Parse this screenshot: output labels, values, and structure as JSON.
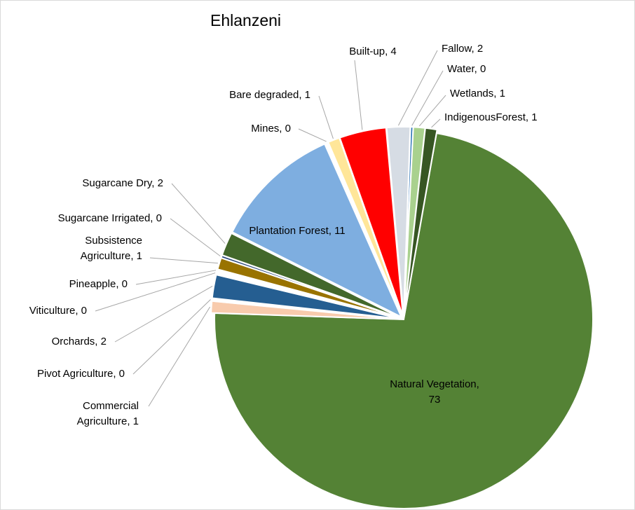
{
  "chart_data": {
    "type": "pie",
    "title": "Ehlanzeni",
    "label_format": "{name}, {value}",
    "slices": [
      {
        "name": "Natural Vegetation",
        "value": 73,
        "color": "#548235"
      },
      {
        "name": "Commercial Agriculture",
        "value": 1,
        "color": "#f8cbad"
      },
      {
        "name": "Pivot  Agriculture",
        "value": 0,
        "color": "#ffffff"
      },
      {
        "name": "Orchards",
        "value": 2,
        "color": "#255e91"
      },
      {
        "name": "Viticulture",
        "value": 0,
        "color": "#ffffff"
      },
      {
        "name": "Pineapple",
        "value": 0,
        "color": "#ffffff"
      },
      {
        "name": "Subsistence Agriculture",
        "value": 1,
        "color": "#997300"
      },
      {
        "name": "Sugarcane Irrigated",
        "value": 0,
        "color": "#264478"
      },
      {
        "name": "Sugarcane Dry",
        "value": 2,
        "color": "#43682b"
      },
      {
        "name": "Plantation Forest",
        "value": 11,
        "color": "#7eaee0"
      },
      {
        "name": "Mines",
        "value": 0,
        "color": "#ffffff"
      },
      {
        "name": "Bare degraded",
        "value": 1,
        "color": "#ffe699"
      },
      {
        "name": "Built-up",
        "value": 4,
        "color": "#ff0000"
      },
      {
        "name": "Fallow",
        "value": 2,
        "color": "#d6dce4"
      },
      {
        "name": "Water",
        "value": 0,
        "color": "#2e75b6"
      },
      {
        "name": "Wetlands",
        "value": 1,
        "color": "#a9d18e"
      },
      {
        "name": "IndigenousForest",
        "value": 1,
        "color": "#375623"
      }
    ]
  }
}
